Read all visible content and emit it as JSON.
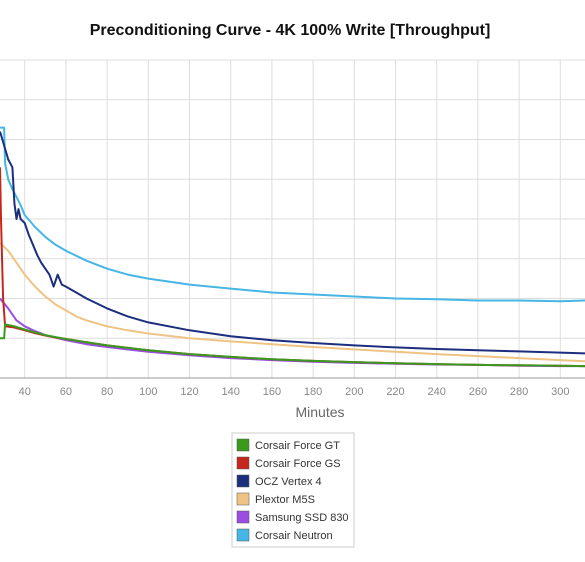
{
  "chart_data": {
    "type": "line",
    "title": "Preconditioning Curve - 4K 100% Write [Throughput]",
    "xlabel": "Minutes",
    "ylabel": "",
    "xlim": [
      28,
      312
    ],
    "ylim": [
      0,
      8
    ],
    "x_ticks": [
      40,
      60,
      80,
      100,
      120,
      140,
      160,
      180,
      200,
      220,
      240,
      260,
      280,
      300
    ],
    "grid": true,
    "legend_position": "bottom-center",
    "series": [
      {
        "name": "Corsair Force GT",
        "color": "#3a9a1e",
        "x": [
          28,
          30,
          30.5,
          35,
          40,
          45,
          50,
          55,
          60,
          70,
          80,
          100,
          120,
          140,
          160,
          180,
          200,
          220,
          240,
          260,
          280,
          300,
          312
        ],
        "y": [
          1.0,
          1.0,
          1.35,
          1.3,
          1.22,
          1.15,
          1.08,
          1.03,
          0.98,
          0.9,
          0.82,
          0.7,
          0.6,
          0.53,
          0.47,
          0.43,
          0.4,
          0.37,
          0.35,
          0.33,
          0.32,
          0.31,
          0.3
        ]
      },
      {
        "name": "Corsair Force GS",
        "color": "#c4281d",
        "x": [
          28,
          28.5,
          29.5,
          30.5,
          35,
          40,
          45,
          50,
          55,
          60,
          70,
          80,
          100,
          120,
          140,
          160,
          180,
          200,
          220,
          240,
          260,
          280,
          300,
          312
        ],
        "y": [
          5.3,
          4.0,
          2.0,
          1.3,
          1.27,
          1.2,
          1.13,
          1.07,
          1.02,
          0.98,
          0.9,
          0.82,
          0.7,
          0.6,
          0.53,
          0.47,
          0.43,
          0.4,
          0.37,
          0.35,
          0.33,
          0.32,
          0.31,
          0.3
        ]
      },
      {
        "name": "OCZ Vertex 4",
        "color": "#1c2e7e",
        "x": [
          28,
          32,
          34,
          35,
          36,
          37,
          38,
          40,
          42,
          44,
          46,
          48,
          50,
          52,
          54,
          56,
          58,
          60,
          65,
          70,
          80,
          90,
          100,
          120,
          140,
          160,
          180,
          200,
          220,
          240,
          260,
          280,
          300,
          312
        ],
        "y": [
          6.2,
          5.5,
          5.3,
          4.4,
          4.0,
          4.25,
          4.0,
          3.9,
          3.6,
          3.35,
          3.1,
          2.9,
          2.75,
          2.6,
          2.3,
          2.6,
          2.35,
          2.3,
          2.15,
          2.0,
          1.75,
          1.55,
          1.4,
          1.2,
          1.05,
          0.95,
          0.88,
          0.82,
          0.77,
          0.73,
          0.7,
          0.67,
          0.64,
          0.62
        ]
      },
      {
        "name": "Plextor M5S",
        "color": "#eec383",
        "x": [
          28,
          32,
          36,
          40,
          45,
          50,
          55,
          60,
          65,
          70,
          80,
          90,
          100,
          120,
          140,
          160,
          180,
          200,
          220,
          240,
          260,
          280,
          300,
          312
        ],
        "y": [
          3.4,
          3.2,
          2.9,
          2.6,
          2.3,
          2.05,
          1.85,
          1.7,
          1.55,
          1.45,
          1.3,
          1.2,
          1.12,
          1.0,
          0.92,
          0.85,
          0.78,
          0.72,
          0.66,
          0.6,
          0.55,
          0.5,
          0.45,
          0.42
        ]
      },
      {
        "name": "Samsung SSD 830",
        "color": "#9a4de0",
        "x": [
          28,
          32,
          36,
          40,
          45,
          50,
          60,
          70,
          80,
          100,
          120,
          140,
          160,
          180,
          200,
          220,
          240,
          260,
          280,
          300,
          312
        ],
        "y": [
          2.0,
          1.75,
          1.45,
          1.3,
          1.18,
          1.08,
          0.95,
          0.85,
          0.78,
          0.66,
          0.57,
          0.5,
          0.45,
          0.41,
          0.38,
          0.36,
          0.34,
          0.33,
          0.31,
          0.3,
          0.3
        ]
      },
      {
        "name": "Corsair Neutron",
        "color": "#45b6e5",
        "x": [
          28,
          30,
          30.5,
          32,
          34,
          36,
          38,
          40,
          45,
          50,
          55,
          60,
          70,
          80,
          90,
          100,
          120,
          140,
          160,
          180,
          200,
          220,
          240,
          260,
          280,
          300,
          312
        ],
        "y": [
          6.3,
          6.3,
          5.4,
          5.0,
          4.75,
          4.55,
          4.35,
          4.1,
          3.8,
          3.55,
          3.35,
          3.2,
          2.95,
          2.75,
          2.6,
          2.5,
          2.35,
          2.25,
          2.15,
          2.1,
          2.05,
          2.0,
          1.98,
          1.95,
          1.95,
          1.93,
          1.95
        ]
      }
    ]
  }
}
